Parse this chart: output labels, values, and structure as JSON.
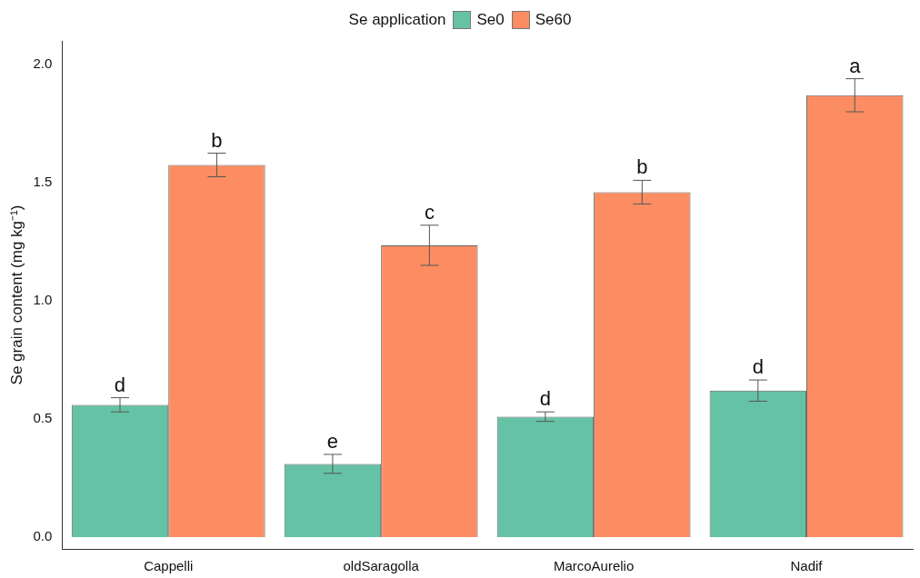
{
  "chart_data": {
    "type": "bar",
    "ylabel": "Se grain content (mg kg⁻¹)",
    "legend_title": "Se application",
    "legend": "top",
    "categories": [
      "Cappelli",
      "oldSaragolla",
      "MarcoAurelio",
      "Nadif"
    ],
    "series": [
      {
        "name": "Se0",
        "color": "#66c2a5",
        "values": [
          0.56,
          0.31,
          0.51,
          0.62
        ],
        "errors": [
          0.03,
          0.04,
          0.02,
          0.045
        ],
        "value_labels": [
          "d",
          "e",
          "d",
          "d"
        ]
      },
      {
        "name": "Se60",
        "color": "#fc8d62",
        "values": [
          1.575,
          1.235,
          1.46,
          1.87
        ],
        "errors": [
          0.05,
          0.085,
          0.05,
          0.07
        ],
        "value_labels": [
          "b",
          "c",
          "b",
          "a"
        ]
      }
    ],
    "ylim": [
      -0.05,
      2.1
    ],
    "yticks": [
      {
        "value": 0,
        "label": "0.0"
      },
      {
        "value": 0.5,
        "label": "0.5"
      },
      {
        "value": 1,
        "label": "1.0"
      },
      {
        "value": 1.5,
        "label": "1.5"
      },
      {
        "value": 2,
        "label": "2.0"
      }
    ],
    "grid": false
  }
}
